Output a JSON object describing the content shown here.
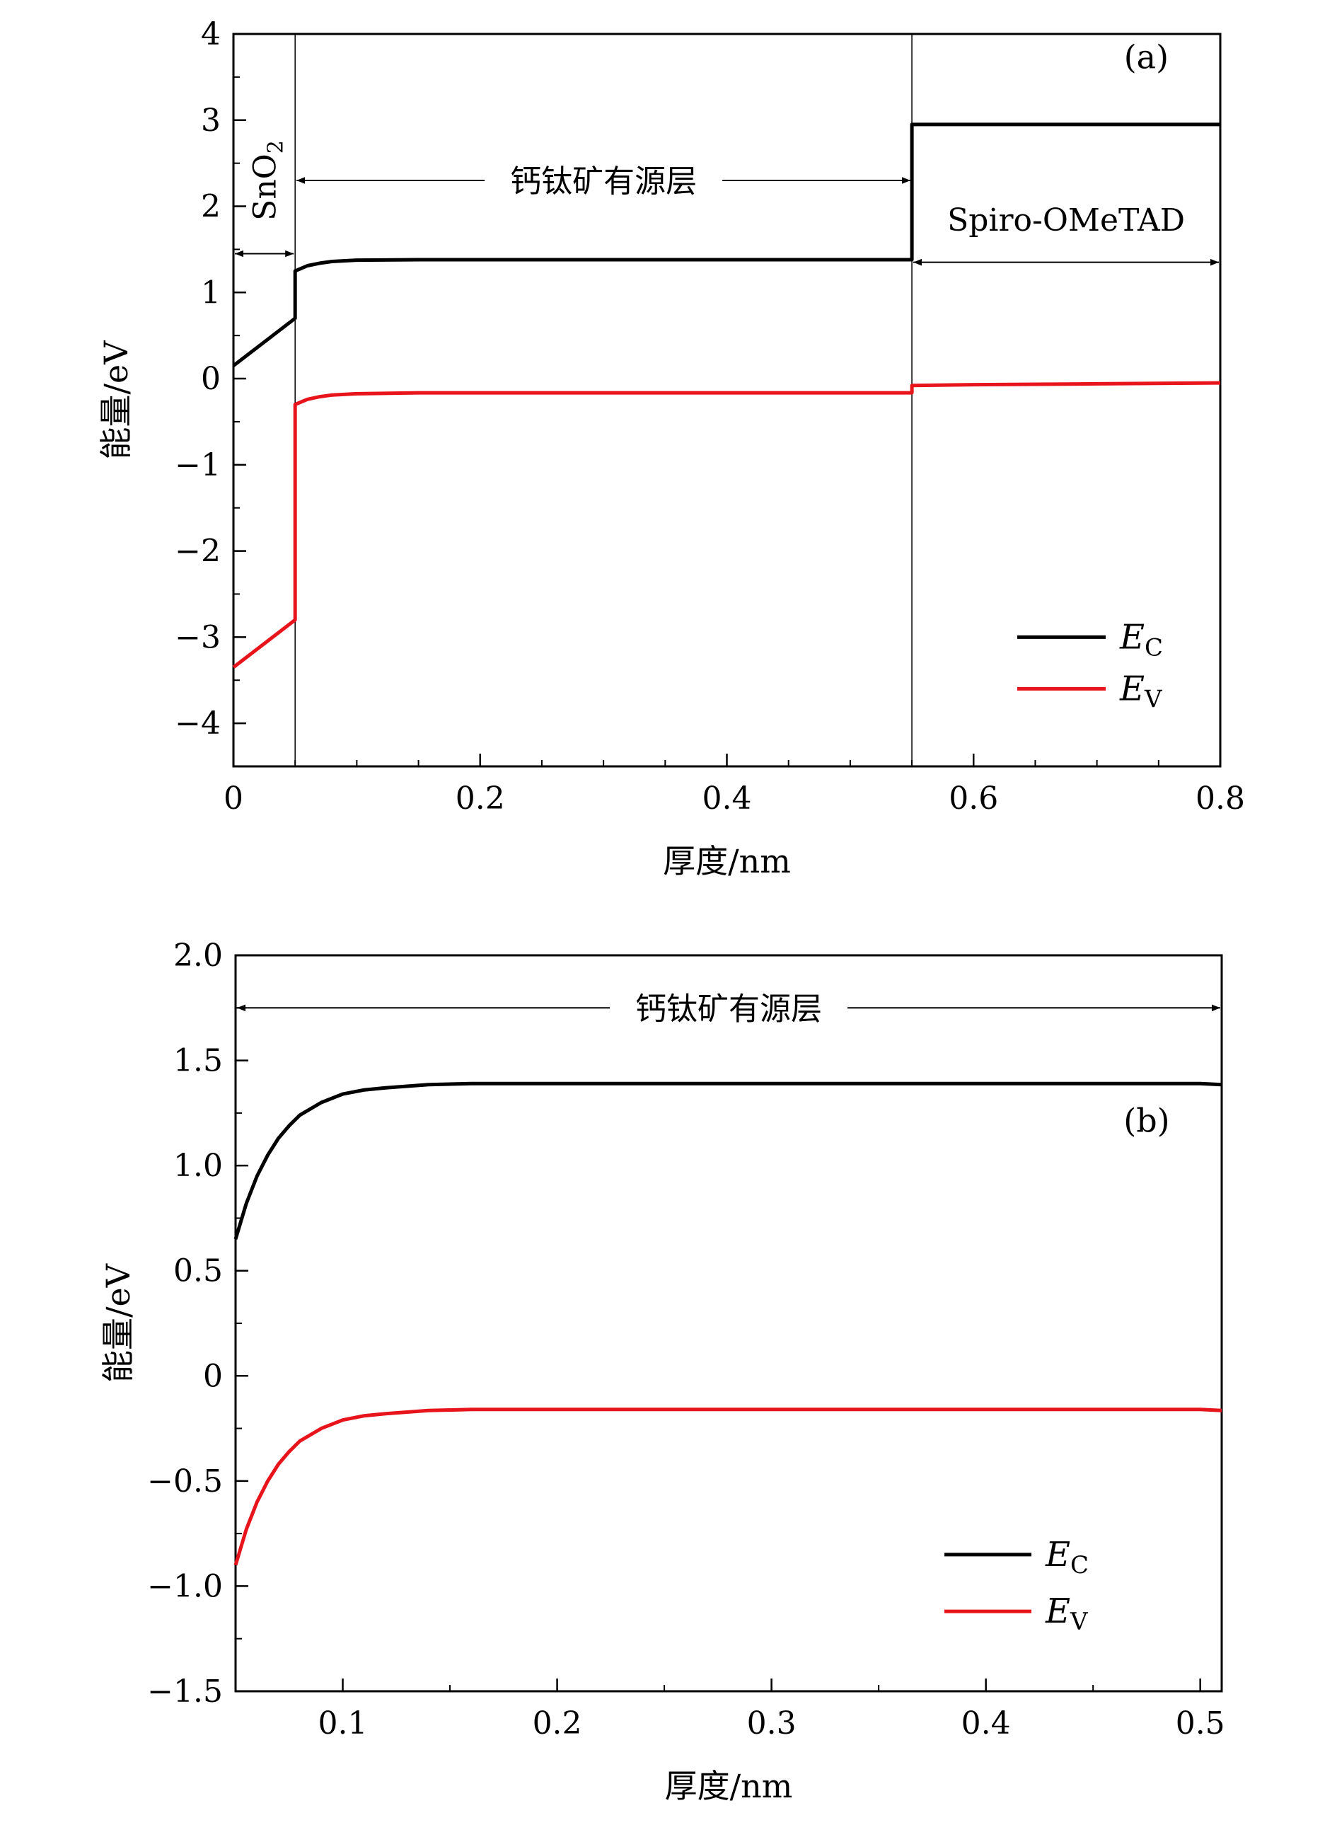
{
  "chart_data": [
    {
      "type": "line",
      "panel_label": "(a)",
      "xlabel": "厚度/nm",
      "ylabel": "能量/eV",
      "xlim": [
        0,
        0.8
      ],
      "ylim": [
        -4.5,
        4
      ],
      "xticks": [
        0,
        0.2,
        0.4,
        0.6,
        0.8
      ],
      "xtick_labels": [
        "0",
        "0.2",
        "0.4",
        "0.6",
        "0.8"
      ],
      "yticks": [
        -4,
        -3,
        -2,
        -1,
        0,
        1,
        2,
        3,
        4
      ],
      "ytick_labels": [
        "−4",
        "−3",
        "−2",
        "−1",
        "0",
        "1",
        "2",
        "3",
        "4"
      ],
      "grid": false,
      "legend_position": "bottom-right",
      "boundaries": [
        0.05,
        0.55
      ],
      "regions": [
        {
          "label": "SnO",
          "sub": "2",
          "from": 0,
          "to": 0.05
        },
        {
          "label": "钙钛矿有源层",
          "from": 0.05,
          "to": 0.55
        },
        {
          "label": "Spiro-OMeTAD",
          "from": 0.55,
          "to": 0.8
        }
      ],
      "series": [
        {
          "name": "E",
          "sub": "C",
          "color": "#000000",
          "x": [
            0,
            0.05,
            0.05,
            0.06,
            0.07,
            0.08,
            0.1,
            0.15,
            0.2,
            0.3,
            0.4,
            0.5,
            0.55,
            0.55,
            0.6,
            0.7,
            0.8
          ],
          "y": [
            0.15,
            0.7,
            1.25,
            1.31,
            1.34,
            1.36,
            1.375,
            1.38,
            1.38,
            1.38,
            1.38,
            1.38,
            1.38,
            2.95,
            2.95,
            2.95,
            2.95
          ]
        },
        {
          "name": "E",
          "sub": "V",
          "color": "#e8141c",
          "x": [
            0,
            0.05,
            0.05,
            0.06,
            0.07,
            0.08,
            0.1,
            0.15,
            0.2,
            0.3,
            0.4,
            0.5,
            0.55,
            0.55,
            0.6,
            0.7,
            0.8
          ],
          "y": [
            -3.35,
            -2.8,
            -0.3,
            -0.24,
            -0.21,
            -0.19,
            -0.175,
            -0.165,
            -0.165,
            -0.165,
            -0.165,
            -0.165,
            -0.165,
            -0.08,
            -0.07,
            -0.06,
            -0.05
          ]
        }
      ]
    },
    {
      "type": "line",
      "panel_label": "(b)",
      "xlabel": "厚度/nm",
      "ylabel": "能量/eV",
      "xlim": [
        0.05,
        0.51
      ],
      "ylim": [
        -1.5,
        2.0
      ],
      "xticks": [
        0.1,
        0.2,
        0.3,
        0.4,
        0.5
      ],
      "xtick_labels": [
        "0.1",
        "0.2",
        "0.3",
        "0.4",
        "0.5"
      ],
      "yticks": [
        -1.5,
        -1.0,
        -0.5,
        0,
        0.5,
        1.0,
        1.5,
        2.0
      ],
      "ytick_labels": [
        "−1.5",
        "−1.0",
        "−0.5",
        "0",
        "0.5",
        "1.0",
        "1.5",
        "2.0"
      ],
      "grid": false,
      "legend_position": "bottom-right",
      "regions": [
        {
          "label": "钙钛矿有源层",
          "from": 0.05,
          "to": 0.51
        }
      ],
      "series": [
        {
          "name": "E",
          "sub": "C",
          "color": "#000000",
          "x": [
            0.05,
            0.055,
            0.06,
            0.065,
            0.07,
            0.075,
            0.08,
            0.09,
            0.1,
            0.11,
            0.12,
            0.14,
            0.16,
            0.2,
            0.3,
            0.4,
            0.5,
            0.51
          ],
          "y": [
            0.65,
            0.82,
            0.95,
            1.05,
            1.13,
            1.19,
            1.24,
            1.3,
            1.34,
            1.36,
            1.37,
            1.385,
            1.39,
            1.39,
            1.39,
            1.39,
            1.39,
            1.385
          ]
        },
        {
          "name": "E",
          "sub": "V",
          "color": "#e8141c",
          "x": [
            0.05,
            0.055,
            0.06,
            0.065,
            0.07,
            0.075,
            0.08,
            0.09,
            0.1,
            0.11,
            0.12,
            0.14,
            0.16,
            0.2,
            0.3,
            0.4,
            0.5,
            0.51
          ],
          "y": [
            -0.9,
            -0.73,
            -0.6,
            -0.5,
            -0.42,
            -0.36,
            -0.31,
            -0.25,
            -0.21,
            -0.19,
            -0.18,
            -0.165,
            -0.16,
            -0.16,
            -0.16,
            -0.16,
            -0.16,
            -0.165
          ]
        }
      ]
    }
  ]
}
